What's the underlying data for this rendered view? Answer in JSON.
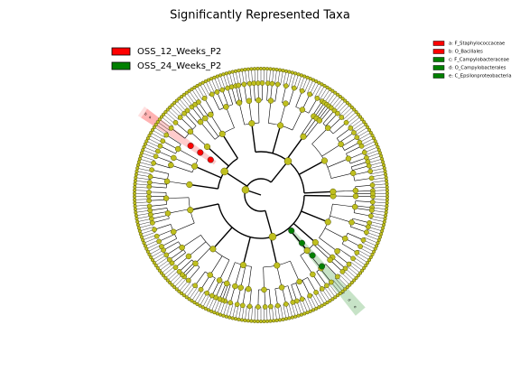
{
  "title": "Significantly Represented Taxa",
  "legend": [
    {
      "name": "OSS_12_Weeks_P2",
      "color": "#ff0000"
    },
    {
      "name": "OSS_24_Weeks_P2",
      "color": "#008000"
    }
  ],
  "key": [
    {
      "label": "a: F_Staphylococcaceae",
      "color": "#ff0000"
    },
    {
      "label": "b: O_Bacillales",
      "color": "#ff0000"
    },
    {
      "label": "c: F_Campylobacteraceae",
      "color": "#008000"
    },
    {
      "label": "d: O_Campylobacterales",
      "color": "#008000"
    },
    {
      "label": "e: C_Epsilonproteobacteria",
      "color": "#008000"
    }
  ],
  "clades": [
    {
      "letter": "a"
    },
    {
      "letter": "b"
    },
    {
      "letter": "c"
    },
    {
      "letter": "d"
    },
    {
      "letter": "e"
    }
  ]
}
